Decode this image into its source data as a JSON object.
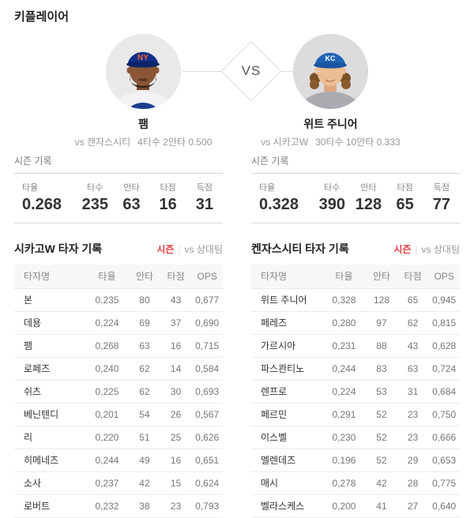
{
  "page": {
    "title": "키플레이어"
  },
  "matchup": {
    "vs_label": "VS",
    "left": {
      "name": "팸",
      "opponent": "vs 캔자스시티",
      "stat_line": "4타수 2안타 0.500",
      "cap_logo": "NY",
      "photo_icon": "player-portrait-mets"
    },
    "right": {
      "name": "위트 주니어",
      "opponent": "vs 시카고W",
      "stat_line": "30타수 10안타 0.333",
      "cap_logo": "KC",
      "photo_icon": "player-portrait-royals"
    }
  },
  "season_records": {
    "label": "시즌 기록",
    "left": [
      {
        "label": "타율",
        "value": "0.268"
      },
      {
        "label": "타수",
        "value": "235"
      },
      {
        "label": "안타",
        "value": "63"
      },
      {
        "label": "타점",
        "value": "16"
      },
      {
        "label": "득점",
        "value": "31"
      }
    ],
    "right": [
      {
        "label": "타율",
        "value": "0.328"
      },
      {
        "label": "타수",
        "value": "390"
      },
      {
        "label": "안타",
        "value": "128"
      },
      {
        "label": "타점",
        "value": "65"
      },
      {
        "label": "득점",
        "value": "77"
      }
    ]
  },
  "tables": {
    "tabs": {
      "active": "시즌",
      "divider": "|",
      "inactive": "vs 상대팀"
    },
    "columns": [
      "타자명",
      "타율",
      "안타",
      "타점",
      "OPS"
    ],
    "left": {
      "title": "시카고W 타자 기록",
      "rows": [
        [
          "본",
          "0,235",
          "80",
          "43",
          "0,677"
        ],
        [
          "데용",
          "0,224",
          "69",
          "37",
          "0,690"
        ],
        [
          "팸",
          "0,268",
          "63",
          "16",
          "0,715"
        ],
        [
          "로페즈",
          "0,240",
          "62",
          "14",
          "0,584"
        ],
        [
          "쉬츠",
          "0,225",
          "62",
          "30",
          "0,693"
        ],
        [
          "베닌텐디",
          "0,201",
          "54",
          "26",
          "0,567"
        ],
        [
          "리",
          "0,220",
          "51",
          "25",
          "0,626"
        ],
        [
          "히메네즈",
          "0,244",
          "49",
          "16",
          "0,651"
        ],
        [
          "소사",
          "0,237",
          "42",
          "15",
          "0,624"
        ],
        [
          "로버트",
          "0,232",
          "38",
          "23",
          "0,793"
        ]
      ]
    },
    "right": {
      "title": "켄자스시티 타자 기록",
      "rows": [
        [
          "위트 주니어",
          "0,328",
          "128",
          "65",
          "0,945"
        ],
        [
          "페레즈",
          "0,280",
          "97",
          "62",
          "0,815"
        ],
        [
          "가르시아",
          "0,231",
          "88",
          "43",
          "0,628"
        ],
        [
          "파스콴티노",
          "0,244",
          "83",
          "63",
          "0,724"
        ],
        [
          "렌프로",
          "0,224",
          "53",
          "31",
          "0,684"
        ],
        [
          "페르민",
          "0,291",
          "52",
          "23",
          "0,750"
        ],
        [
          "이스벨",
          "0,230",
          "52",
          "23",
          "0,666"
        ],
        [
          "멜렌데즈",
          "0,196",
          "52",
          "29",
          "0,653"
        ],
        [
          "매시",
          "0,278",
          "42",
          "28",
          "0,775"
        ],
        [
          "벨라스케스",
          "0,200",
          "41",
          "27",
          "0,640"
        ]
      ]
    }
  },
  "colors": {
    "accent_red": "#e03a3e",
    "header_bg": "#f7f7f7",
    "border": "#ececec",
    "text_gray": "#999999",
    "mets_cap_blue": "#0b2f8a",
    "mets_logo_orange": "#f2652f",
    "royals_cap_blue": "#1f63b5"
  }
}
